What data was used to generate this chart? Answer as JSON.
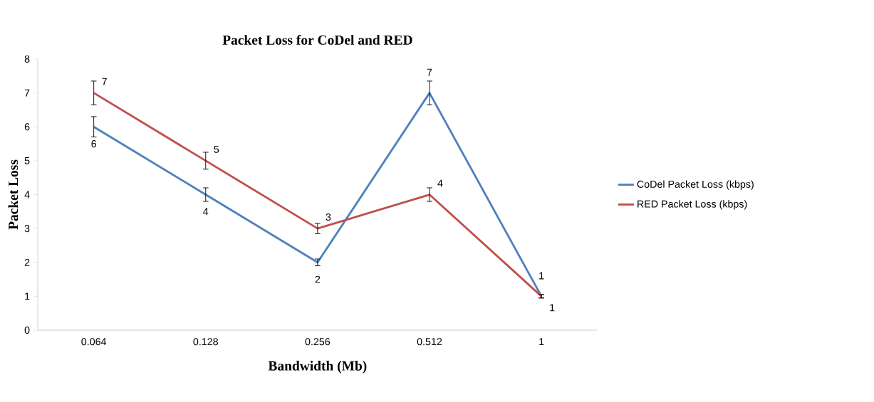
{
  "chart_data": {
    "type": "line",
    "title": "Packet Loss for CoDel and RED",
    "xlabel": "Bandwidth  (Mb)",
    "ylabel": "Packet Loss",
    "categories": [
      "0.064",
      "0.128",
      "0.256",
      "0.512",
      "1"
    ],
    "series": [
      {
        "name": "CoDel Packet Loss (kbps)",
        "color": "#4f81bd",
        "values": [
          6,
          4,
          2,
          7,
          1
        ],
        "errors": [
          0.3,
          0.2,
          0.1,
          0.35,
          0.05
        ]
      },
      {
        "name": "RED Packet Loss (kbps)",
        "color": "#c0504d",
        "values": [
          7,
          5,
          3,
          4,
          1
        ],
        "errors": [
          0.35,
          0.25,
          0.15,
          0.2,
          0.05
        ]
      }
    ],
    "ylim": [
      0,
      8
    ],
    "yticks": [
      0,
      1,
      2,
      3,
      4,
      5,
      6,
      7,
      8
    ],
    "data_labels": true,
    "legend": "right",
    "grid": false,
    "marker": "none",
    "line_style": "solid"
  }
}
